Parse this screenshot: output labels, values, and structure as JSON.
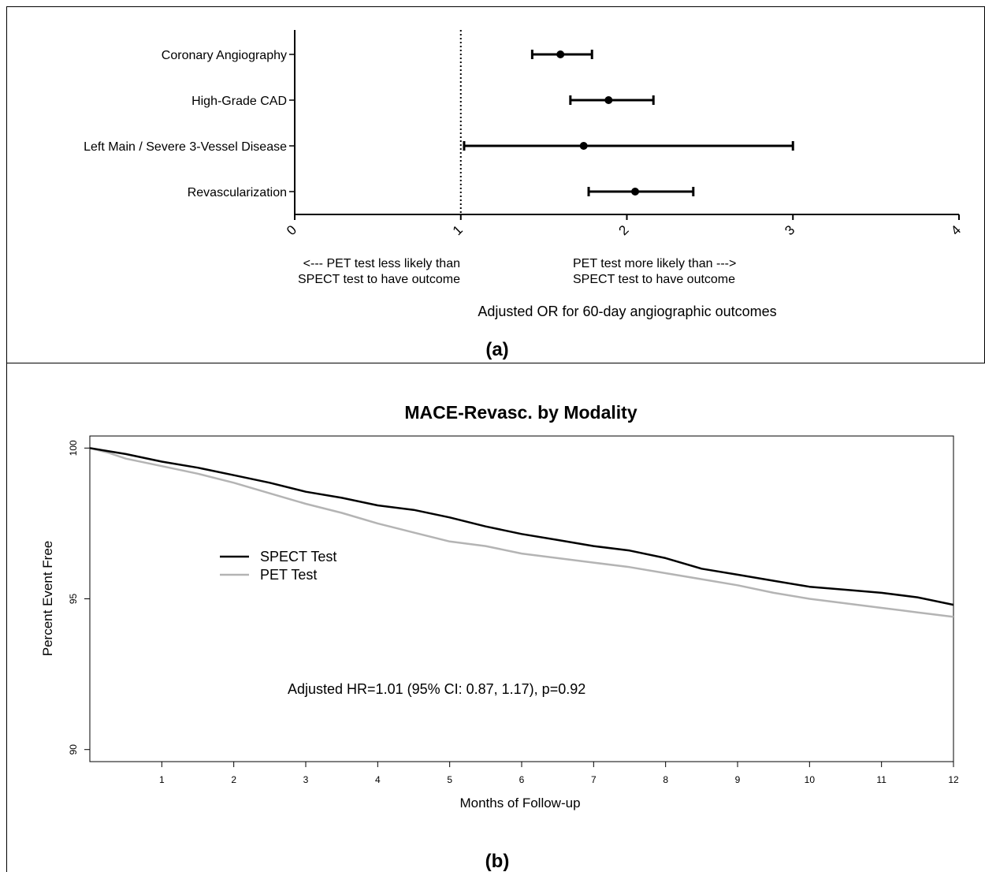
{
  "chart_data": [
    {
      "panel_label": "(a)",
      "type": "forest",
      "xlabel": "Adjusted OR for 60-day angiographic outcomes",
      "xlim": [
        0,
        4
      ],
      "xticks": [
        "0",
        "1",
        "2",
        "3",
        "4"
      ],
      "reference_line": 1,
      "left_note": [
        "<---    PET test less likely than",
        "SPECT test to have outcome"
      ],
      "right_note": [
        "PET test more likely than --->",
        "SPECT test to have outcome"
      ],
      "categories": [
        "Coronary Angiography",
        "High-Grade CAD",
        "Left Main / Severe 3-Vessel Disease",
        "Revascularization"
      ],
      "estimates": [
        1.6,
        1.89,
        1.74,
        2.05
      ],
      "ci_low": [
        1.43,
        1.66,
        1.02,
        1.77
      ],
      "ci_high": [
        1.79,
        2.16,
        3.0,
        2.4
      ]
    },
    {
      "panel_label": "(b)",
      "type": "line",
      "title": "MACE-Revasc. by Modality",
      "xlabel": "Months of Follow-up",
      "ylabel": "Percent Event Free",
      "xlim": [
        0,
        12
      ],
      "ylim": [
        89.6,
        100.4
      ],
      "xticks": [
        "1",
        "2",
        "3",
        "4",
        "5",
        "6",
        "7",
        "8",
        "9",
        "10",
        "11",
        "12"
      ],
      "yticks": [
        "90",
        "95",
        "100"
      ],
      "annotation": "Adjusted HR=1.01 (95% CI: 0.87, 1.17), p=0.92",
      "legend_position": "left",
      "x": [
        0,
        0.25,
        0.5,
        1,
        1.5,
        2,
        2.5,
        3,
        3.5,
        4,
        4.5,
        5,
        5.5,
        6,
        6.5,
        7,
        7.5,
        8,
        8.5,
        9,
        9.5,
        10,
        10.5,
        11,
        11.5,
        12
      ],
      "series": [
        {
          "name": "SPECT Test",
          "color": "#000000",
          "values": [
            100,
            99.9,
            99.8,
            99.55,
            99.35,
            99.1,
            98.85,
            98.55,
            98.35,
            98.1,
            97.95,
            97.7,
            97.4,
            97.15,
            96.95,
            96.75,
            96.6,
            96.35,
            96.0,
            95.8,
            95.6,
            95.4,
            95.3,
            95.2,
            95.05,
            94.8
          ]
        },
        {
          "name": "PET Test",
          "color": "#b4b4b4",
          "values": [
            100,
            99.85,
            99.65,
            99.4,
            99.15,
            98.85,
            98.5,
            98.15,
            97.85,
            97.5,
            97.2,
            96.9,
            96.75,
            96.5,
            96.35,
            96.2,
            96.05,
            95.85,
            95.65,
            95.45,
            95.2,
            95.0,
            94.85,
            94.7,
            94.55,
            94.4
          ]
        }
      ]
    }
  ]
}
